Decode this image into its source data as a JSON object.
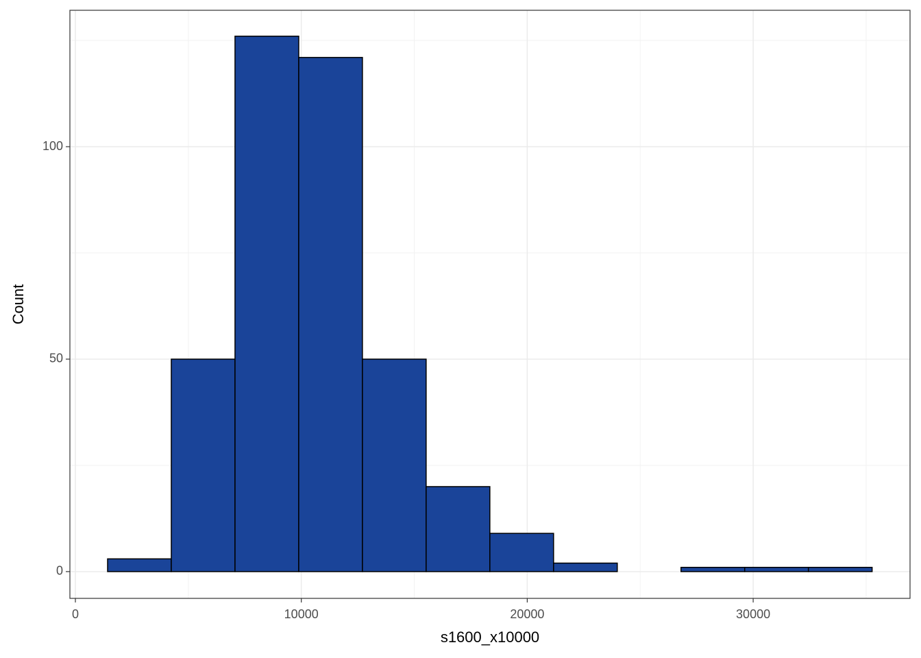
{
  "chart_data": {
    "type": "histogram",
    "x_label": "s1600_x10000",
    "y_label": "Count",
    "bins": [
      1425,
      4245,
      7065,
      9885,
      12705,
      15525,
      18345,
      21165,
      23985,
      26805,
      29625,
      32445,
      35265
    ],
    "values": [
      3,
      50,
      126,
      121,
      50,
      20,
      9,
      2,
      0,
      1,
      1,
      1
    ],
    "color": "#1a4499",
    "xlim": [
      -243,
      36943
    ],
    "ylim": [
      -6.3,
      132.1
    ],
    "xticks": [
      0,
      10000,
      20000,
      30000
    ],
    "yticks": [
      0,
      50,
      100
    ],
    "grid": true
  }
}
